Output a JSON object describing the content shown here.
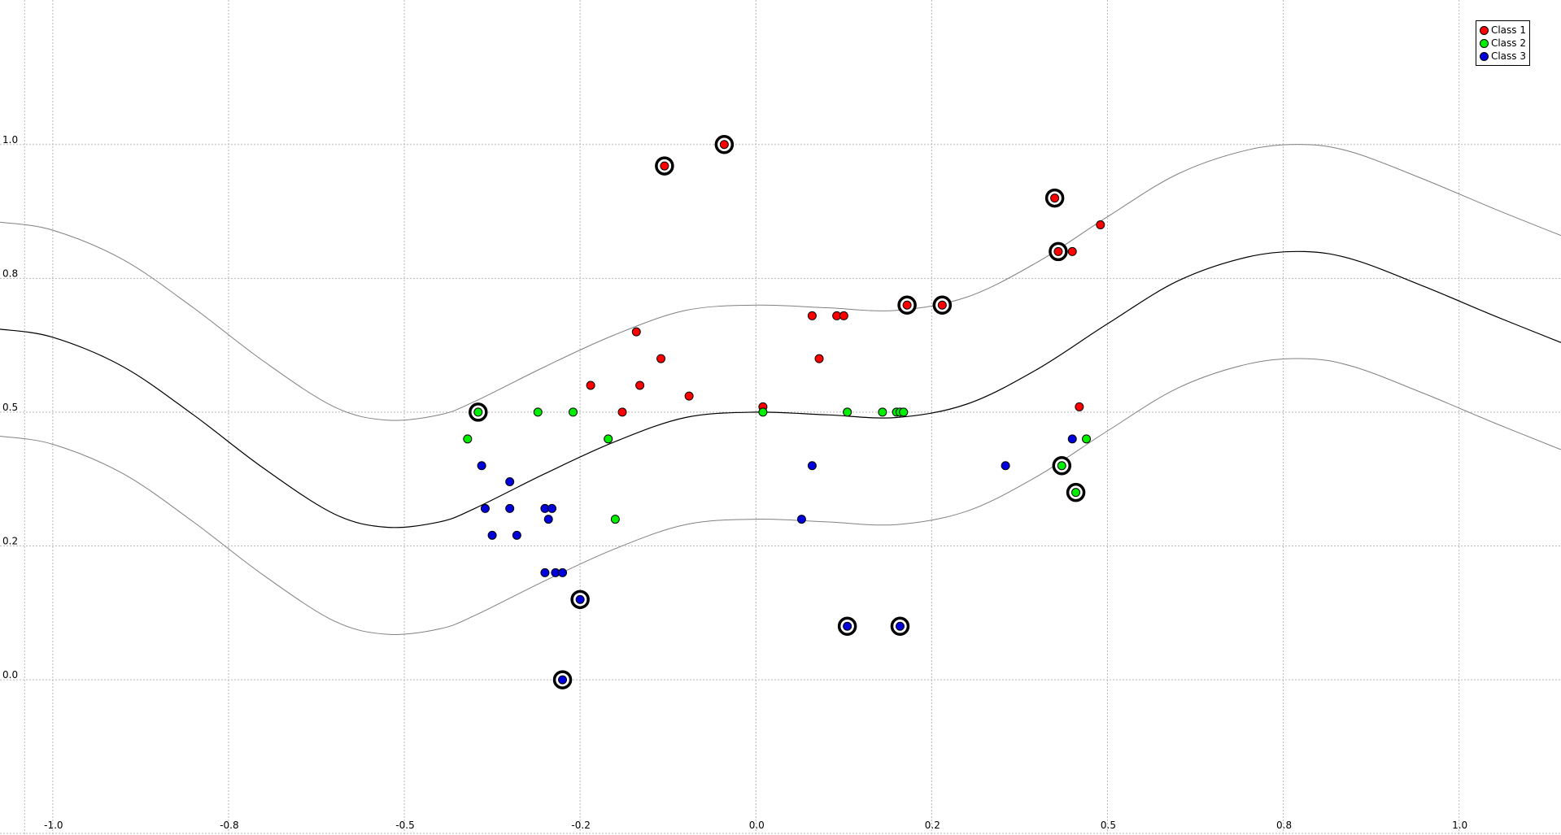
{
  "chart_data": {
    "type": "scatter",
    "title": "",
    "xlabel": "",
    "ylabel": "",
    "xlim": [
      -1.075,
      1.145
    ],
    "ylim": [
      -0.29,
      1.27
    ],
    "grid": true,
    "legend_position": "top-right",
    "x_ticks": [
      {
        "value": -1.0,
        "label": "-1.0"
      },
      {
        "value": -0.75,
        "label": "-0.8"
      },
      {
        "value": -0.5,
        "label": "-0.5"
      },
      {
        "value": -0.25,
        "label": "-0.2"
      },
      {
        "value": 0.0,
        "label": "0.0"
      },
      {
        "value": 0.25,
        "label": "0.2"
      },
      {
        "value": 0.5,
        "label": "0.5"
      },
      {
        "value": 0.75,
        "label": "0.8"
      },
      {
        "value": 1.0,
        "label": "1.0"
      }
    ],
    "y_ticks": [
      {
        "value": 0.0,
        "label": "0.0"
      },
      {
        "value": 0.25,
        "label": "0.2"
      },
      {
        "value": 0.5,
        "label": "0.5"
      },
      {
        "value": 0.75,
        "label": "0.8"
      },
      {
        "value": 1.0,
        "label": "1.0"
      }
    ],
    "series": [
      {
        "name": "Class 1",
        "color": "#ff0000",
        "points": [
          [
            -0.13,
            0.96,
            1
          ],
          [
            -0.045,
            1.0,
            1
          ],
          [
            0.425,
            0.9,
            1
          ],
          [
            0.43,
            0.8,
            1
          ],
          [
            0.49,
            0.85,
            0
          ],
          [
            0.45,
            0.8,
            0
          ],
          [
            0.215,
            0.7,
            1
          ],
          [
            0.265,
            0.7,
            1
          ],
          [
            0.08,
            0.68,
            0
          ],
          [
            0.115,
            0.68,
            0
          ],
          [
            0.125,
            0.68,
            0
          ],
          [
            0.09,
            0.6,
            0
          ],
          [
            -0.17,
            0.65,
            0
          ],
          [
            -0.135,
            0.6,
            0
          ],
          [
            -0.235,
            0.55,
            0
          ],
          [
            -0.165,
            0.55,
            0
          ],
          [
            -0.095,
            0.53,
            0
          ],
          [
            -0.19,
            0.5,
            0
          ],
          [
            0.01,
            0.51,
            0
          ],
          [
            0.46,
            0.51,
            0
          ]
        ]
      },
      {
        "name": "Class 2",
        "color": "#00ee00",
        "points": [
          [
            -0.395,
            0.5,
            1
          ],
          [
            -0.41,
            0.45,
            0
          ],
          [
            -0.31,
            0.5,
            0
          ],
          [
            -0.26,
            0.5,
            0
          ],
          [
            -0.21,
            0.45,
            0
          ],
          [
            -0.2,
            0.3,
            0
          ],
          [
            0.01,
            0.5,
            0
          ],
          [
            0.13,
            0.5,
            0
          ],
          [
            0.18,
            0.5,
            0
          ],
          [
            0.2,
            0.5,
            0
          ],
          [
            0.205,
            0.5,
            0
          ],
          [
            0.21,
            0.5,
            0
          ],
          [
            0.435,
            0.4,
            1
          ],
          [
            0.455,
            0.35,
            1
          ],
          [
            0.47,
            0.45,
            0
          ]
        ]
      },
      {
        "name": "Class 3",
        "color": "#0000dd",
        "points": [
          [
            -0.39,
            0.4,
            0
          ],
          [
            -0.35,
            0.37,
            0
          ],
          [
            -0.385,
            0.32,
            0
          ],
          [
            -0.35,
            0.32,
            0
          ],
          [
            -0.3,
            0.32,
            0
          ],
          [
            -0.29,
            0.32,
            0
          ],
          [
            -0.295,
            0.3,
            0
          ],
          [
            -0.375,
            0.27,
            0
          ],
          [
            -0.34,
            0.27,
            0
          ],
          [
            -0.3,
            0.2,
            0
          ],
          [
            -0.285,
            0.2,
            0
          ],
          [
            -0.275,
            0.2,
            0
          ],
          [
            -0.25,
            0.15,
            1
          ],
          [
            -0.275,
            0.0,
            1
          ],
          [
            0.08,
            0.4,
            0
          ],
          [
            0.065,
            0.3,
            0
          ],
          [
            0.13,
            0.1,
            1
          ],
          [
            0.205,
            0.1,
            1
          ],
          [
            0.355,
            0.4,
            0
          ],
          [
            0.45,
            0.45,
            0
          ]
        ]
      }
    ],
    "curves": [
      {
        "role": "decision-boundary",
        "color": "#000000",
        "points": [
          [
            -1.075,
            0.655
          ],
          [
            -1.0,
            0.64
          ],
          [
            -0.9,
            0.585
          ],
          [
            -0.8,
            0.495
          ],
          [
            -0.7,
            0.395
          ],
          [
            -0.6,
            0.31
          ],
          [
            -0.525,
            0.285
          ],
          [
            -0.45,
            0.295
          ],
          [
            -0.4,
            0.32
          ],
          [
            -0.3,
            0.385
          ],
          [
            -0.2,
            0.445
          ],
          [
            -0.1,
            0.49
          ],
          [
            0.0,
            0.5
          ],
          [
            0.1,
            0.495
          ],
          [
            0.2,
            0.49
          ],
          [
            0.3,
            0.515
          ],
          [
            0.4,
            0.58
          ],
          [
            0.5,
            0.665
          ],
          [
            0.6,
            0.745
          ],
          [
            0.7,
            0.79
          ],
          [
            0.78,
            0.8
          ],
          [
            0.85,
            0.785
          ],
          [
            0.95,
            0.735
          ],
          [
            1.05,
            0.68
          ],
          [
            1.145,
            0.63
          ]
        ]
      },
      {
        "role": "margin-upper",
        "color": "#808080",
        "points": [
          [
            -1.075,
            0.855
          ],
          [
            -1.0,
            0.84
          ],
          [
            -0.9,
            0.785
          ],
          [
            -0.8,
            0.695
          ],
          [
            -0.7,
            0.595
          ],
          [
            -0.6,
            0.51
          ],
          [
            -0.525,
            0.485
          ],
          [
            -0.45,
            0.495
          ],
          [
            -0.4,
            0.52
          ],
          [
            -0.3,
            0.585
          ],
          [
            -0.2,
            0.645
          ],
          [
            -0.1,
            0.69
          ],
          [
            0.0,
            0.7
          ],
          [
            0.1,
            0.695
          ],
          [
            0.2,
            0.69
          ],
          [
            0.3,
            0.715
          ],
          [
            0.4,
            0.78
          ],
          [
            0.5,
            0.865
          ],
          [
            0.6,
            0.945
          ],
          [
            0.7,
            0.99
          ],
          [
            0.78,
            1.0
          ],
          [
            0.85,
            0.985
          ],
          [
            0.95,
            0.935
          ],
          [
            1.05,
            0.88
          ],
          [
            1.145,
            0.83
          ]
        ]
      },
      {
        "role": "margin-lower",
        "color": "#808080",
        "points": [
          [
            -1.075,
            0.455
          ],
          [
            -1.0,
            0.44
          ],
          [
            -0.9,
            0.385
          ],
          [
            -0.8,
            0.295
          ],
          [
            -0.7,
            0.195
          ],
          [
            -0.6,
            0.11
          ],
          [
            -0.525,
            0.085
          ],
          [
            -0.45,
            0.095
          ],
          [
            -0.4,
            0.12
          ],
          [
            -0.3,
            0.185
          ],
          [
            -0.2,
            0.245
          ],
          [
            -0.1,
            0.29
          ],
          [
            0.0,
            0.3
          ],
          [
            0.1,
            0.295
          ],
          [
            0.2,
            0.29
          ],
          [
            0.3,
            0.315
          ],
          [
            0.4,
            0.38
          ],
          [
            0.5,
            0.465
          ],
          [
            0.6,
            0.545
          ],
          [
            0.7,
            0.59
          ],
          [
            0.78,
            0.6
          ],
          [
            0.85,
            0.585
          ],
          [
            0.95,
            0.535
          ],
          [
            1.05,
            0.48
          ],
          [
            1.145,
            0.43
          ]
        ]
      }
    ]
  }
}
